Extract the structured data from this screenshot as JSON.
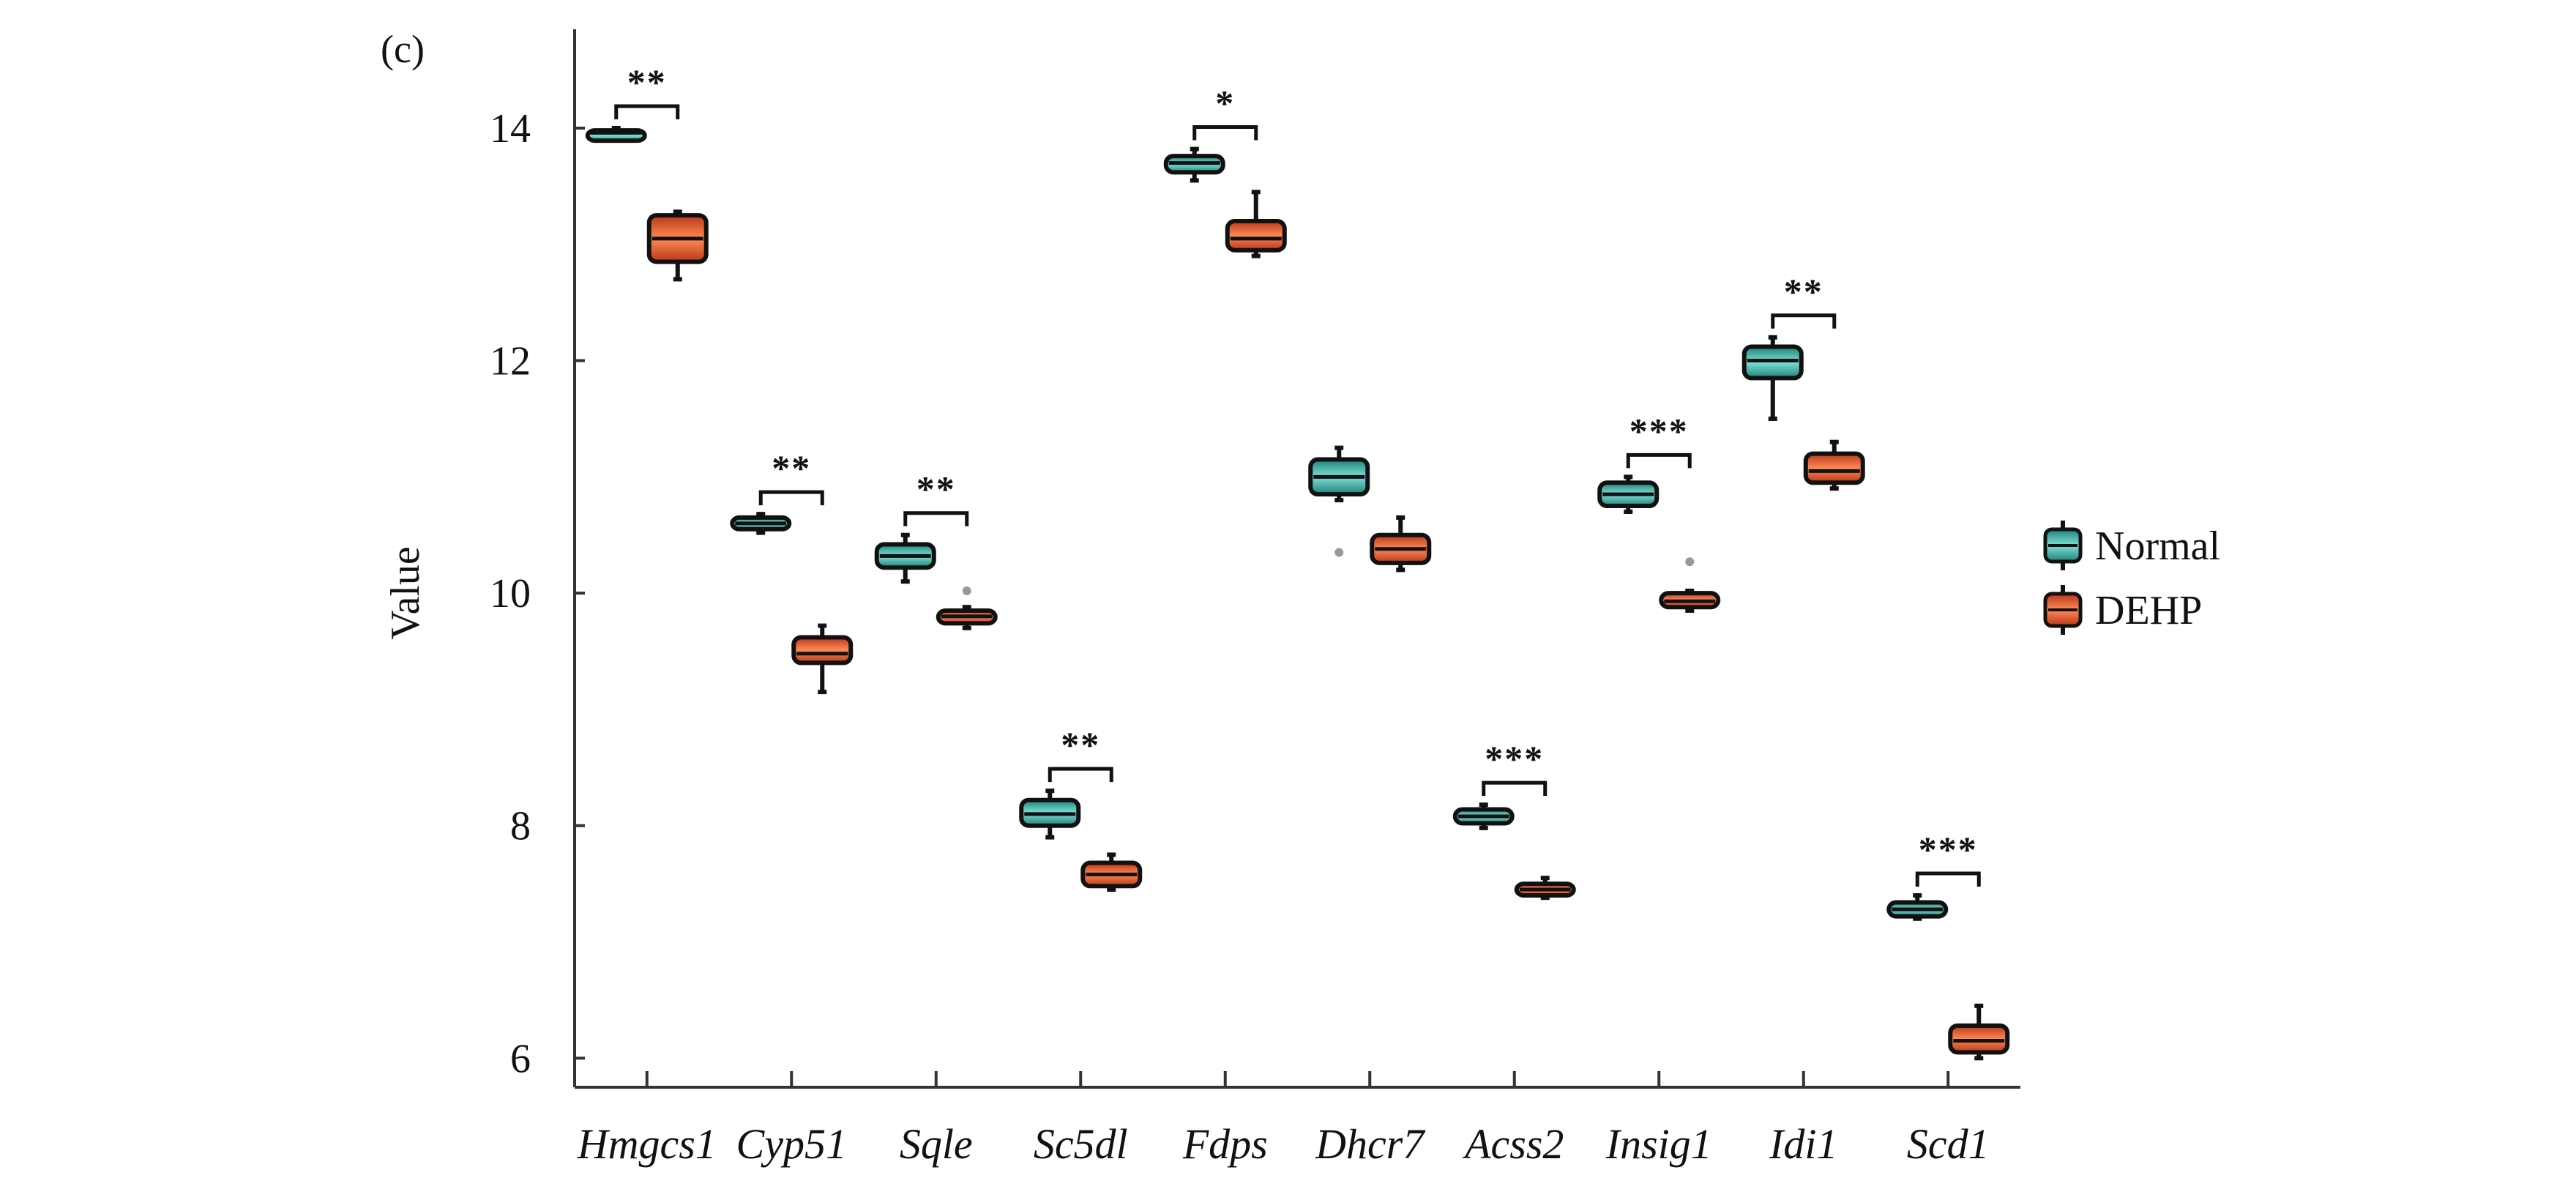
{
  "panel_label": "(c)",
  "colors": {
    "normal": "#2fb3a8",
    "dehp": "#e8542a",
    "axis": "#333333",
    "dark": "#111111"
  },
  "chart_data": {
    "type": "boxplot",
    "ylabel": "Value",
    "xlabel": "",
    "ylim": [
      5.75,
      14.85
    ],
    "yticks": [
      6,
      8,
      10,
      12,
      14
    ],
    "categories": [
      "Hmgcs1",
      "Cyp51",
      "Sqle",
      "Sc5dl",
      "Fdps",
      "Dhcr7",
      "Acss2",
      "Insig1",
      "Idi1",
      "Scd1"
    ],
    "legend": {
      "placement": "right",
      "entries": [
        "Normal",
        "DEHP"
      ]
    },
    "series": [
      {
        "name": "Normal",
        "boxes": [
          {
            "min": 13.92,
            "q1": 13.94,
            "median": 13.96,
            "q3": 13.98,
            "max": 14.0,
            "outliers": []
          },
          {
            "min": 10.52,
            "q1": 10.55,
            "median": 10.6,
            "q3": 10.65,
            "max": 10.68,
            "outliers": []
          },
          {
            "min": 10.1,
            "q1": 10.22,
            "median": 10.32,
            "q3": 10.42,
            "max": 10.5,
            "outliers": []
          },
          {
            "min": 7.9,
            "q1": 8.0,
            "median": 8.1,
            "q3": 8.22,
            "max": 8.3,
            "outliers": []
          },
          {
            "min": 13.55,
            "q1": 13.62,
            "median": 13.7,
            "q3": 13.76,
            "max": 13.82,
            "outliers": []
          },
          {
            "min": 10.8,
            "q1": 10.85,
            "median": 11.0,
            "q3": 11.15,
            "max": 11.25,
            "outliers": [
              10.35
            ]
          },
          {
            "min": 7.98,
            "q1": 8.02,
            "median": 8.08,
            "q3": 8.14,
            "max": 8.18,
            "outliers": []
          },
          {
            "min": 10.7,
            "q1": 10.75,
            "median": 10.85,
            "q3": 10.95,
            "max": 11.0,
            "outliers": []
          },
          {
            "min": 11.5,
            "q1": 11.85,
            "median": 12.0,
            "q3": 12.12,
            "max": 12.2,
            "outliers": []
          },
          {
            "min": 7.2,
            "q1": 7.22,
            "median": 7.28,
            "q3": 7.34,
            "max": 7.4,
            "outliers": []
          }
        ]
      },
      {
        "name": "DEHP",
        "boxes": [
          {
            "min": 12.7,
            "q1": 12.85,
            "median": 13.05,
            "q3": 13.25,
            "max": 13.28,
            "outliers": []
          },
          {
            "min": 9.15,
            "q1": 9.4,
            "median": 9.48,
            "q3": 9.62,
            "max": 9.72,
            "outliers": []
          },
          {
            "min": 9.7,
            "q1": 9.74,
            "median": 9.8,
            "q3": 9.85,
            "max": 9.88,
            "outliers": [
              10.02
            ]
          },
          {
            "min": 7.45,
            "q1": 7.48,
            "median": 7.58,
            "q3": 7.68,
            "max": 7.75,
            "outliers": []
          },
          {
            "min": 12.9,
            "q1": 12.95,
            "median": 13.05,
            "q3": 13.2,
            "max": 13.45,
            "outliers": []
          },
          {
            "min": 10.2,
            "q1": 10.26,
            "median": 10.38,
            "q3": 10.5,
            "max": 10.65,
            "outliers": []
          },
          {
            "min": 7.38,
            "q1": 7.4,
            "median": 7.45,
            "q3": 7.5,
            "max": 7.55,
            "outliers": []
          },
          {
            "min": 9.85,
            "q1": 9.88,
            "median": 9.93,
            "q3": 10.0,
            "max": 10.02,
            "outliers": [
              10.27
            ]
          },
          {
            "min": 10.9,
            "q1": 10.95,
            "median": 11.05,
            "q3": 11.2,
            "max": 11.3,
            "outliers": []
          },
          {
            "min": 6.0,
            "q1": 6.05,
            "median": 6.15,
            "q3": 6.28,
            "max": 6.45,
            "outliers": []
          }
        ]
      }
    ],
    "significance": [
      "**",
      "**",
      "**",
      "**",
      "*",
      "",
      "***",
      "***",
      "**",
      "***"
    ]
  }
}
